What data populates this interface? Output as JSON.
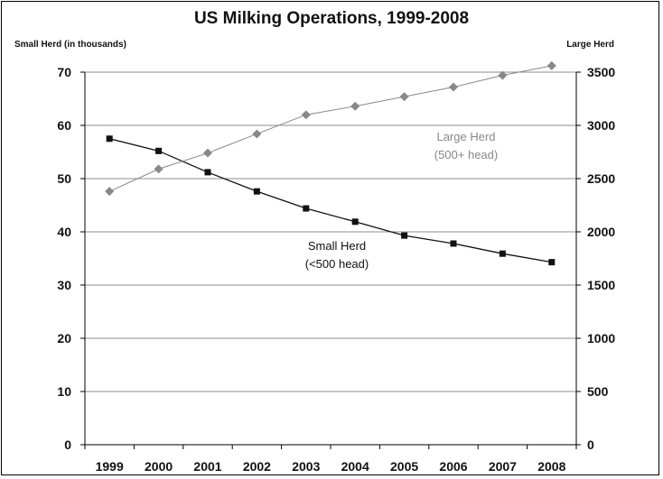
{
  "chart_data": {
    "type": "line",
    "title": "US Milking Operations, 1999-2008",
    "y_left_label": "Small Herd (in thousands)",
    "y_right_label": "Large Herd",
    "left_axis": {
      "ticks": [
        "0",
        "10",
        "20",
        "30",
        "40",
        "50",
        "60",
        "70"
      ],
      "ylim": [
        0,
        70
      ]
    },
    "right_axis": {
      "ticks": [
        "0",
        "500",
        "1000",
        "1500",
        "2000",
        "2500",
        "3000",
        "3500"
      ],
      "ylim": [
        0,
        3500
      ]
    },
    "categories": [
      "1999",
      "2000",
      "2001",
      "2002",
      "2003",
      "2004",
      "2005",
      "2006",
      "2007",
      "2008"
    ],
    "series": [
      {
        "name": "Small Herd\n(<500 head)",
        "axis": "left",
        "marker": "square",
        "values": [
          57.5,
          55.2,
          51.2,
          47.6,
          44.4,
          41.9,
          39.3,
          37.8,
          35.9,
          34.3
        ],
        "label_lines": [
          "Small Herd",
          "(<500 head)"
        ]
      },
      {
        "name": "Large Herd\n(500+ head)",
        "axis": "right",
        "marker": "diamond",
        "values": [
          2380,
          2590,
          2740,
          2920,
          3100,
          3180,
          3270,
          3360,
          3470,
          3560
        ],
        "label_lines": [
          "Large Herd",
          "(500+ head)"
        ]
      }
    ],
    "grid": true,
    "legend": "none"
  },
  "colors": {
    "small_herd": "#111111",
    "large_herd": "#888888",
    "grid": "#8c8c8c",
    "plot_bg": "#ffffff"
  }
}
